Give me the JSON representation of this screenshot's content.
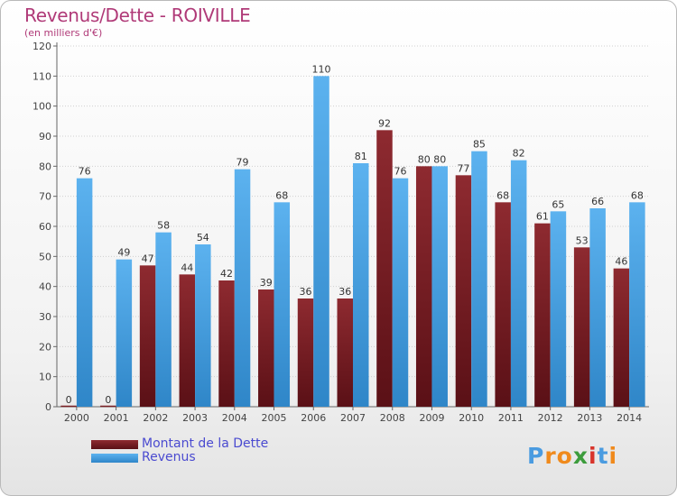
{
  "chart_data": {
    "type": "bar",
    "title": "Revenus/Dette - ROIVILLE",
    "subtitle": "(en milliers d'€)",
    "categories": [
      "2000",
      "2001",
      "2002",
      "2003",
      "2004",
      "2005",
      "2006",
      "2007",
      "2008",
      "2009",
      "2010",
      "2011",
      "2012",
      "2013",
      "2014"
    ],
    "series": [
      {
        "name": "Montant de la Dette",
        "values": [
          0,
          0,
          47,
          44,
          42,
          39,
          36,
          36,
          92,
          80,
          77,
          68,
          61,
          53,
          46
        ],
        "color": "#7a1f25"
      },
      {
        "name": "Revenus",
        "values": [
          76,
          49,
          58,
          54,
          79,
          68,
          110,
          81,
          76,
          80,
          85,
          82,
          65,
          66,
          68
        ],
        "color": "#4aa3e6"
      }
    ],
    "ylim": [
      0,
      120
    ],
    "yticks": [
      0,
      10,
      20,
      30,
      40,
      50,
      60,
      70,
      80,
      90,
      100,
      110,
      120
    ],
    "grid": true,
    "legend_position": "bottom-left"
  },
  "logo": {
    "letters": [
      "P",
      "r",
      "o",
      "x",
      "i",
      "t",
      "i"
    ],
    "colors": [
      "#4a9be0",
      "#f08a1c",
      "#f08a1c",
      "#3c9c3c",
      "#d8342b",
      "#4a9be0",
      "#f08a1c"
    ]
  }
}
